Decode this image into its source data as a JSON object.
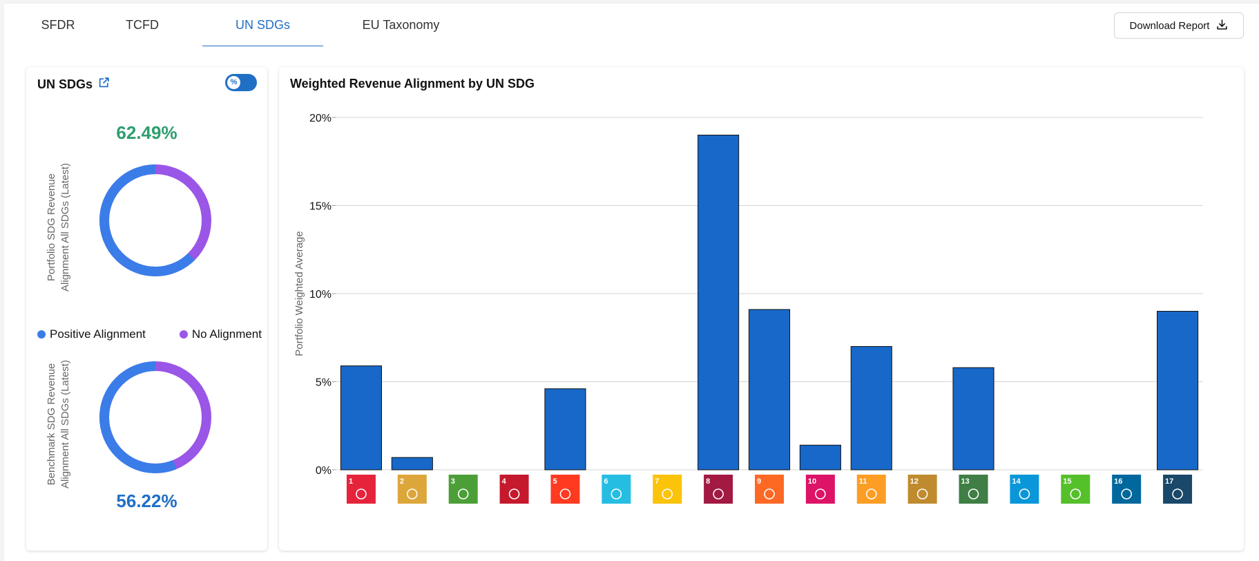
{
  "tabs": [
    {
      "label": "SFDR",
      "active": false
    },
    {
      "label": "TCFD",
      "active": false
    },
    {
      "label": "UN SDGs",
      "active": true
    },
    {
      "label": "EU Taxonomy",
      "active": false
    }
  ],
  "download_button": {
    "label": "Download Report",
    "icon": "download-icon"
  },
  "left_panel": {
    "title": "UN SDGs",
    "title_icon": "external-link-icon",
    "toggle": {
      "label": "%",
      "on": true
    },
    "portfolio": {
      "value": "62.49%",
      "value_color": "#2e9e6e",
      "label": "Portfolio SDG Revenue Alignment All SDGs (Latest)",
      "positive_fraction": 0.6249
    },
    "benchmark": {
      "value": "56.22%",
      "value_color": "#1f6fc5",
      "label": "Benchmark SDG Revenue Alignment All SDGs (Latest)",
      "positive_fraction": 0.5622
    },
    "legend": [
      {
        "label": "Positive Alignment",
        "color": "#3b7de8"
      },
      {
        "label": "No Alignment",
        "color": "#9a56e6"
      }
    ]
  },
  "right_panel": {
    "title": "Weighted Revenue Alignment by UN SDG"
  },
  "chart_data": {
    "type": "bar",
    "title": "Weighted Revenue Alignment by UN SDG",
    "xlabel": "",
    "ylabel": "Portfolio Weighted Average",
    "ylim": [
      0,
      20
    ],
    "yticks": [
      "0%",
      "5%",
      "10%",
      "15%",
      "20%"
    ],
    "grid": true,
    "bar_color": "#1768c8",
    "categories": [
      "SDG 1",
      "SDG 2",
      "SDG 3",
      "SDG 4",
      "SDG 5",
      "SDG 6",
      "SDG 7",
      "SDG 8",
      "SDG 9",
      "SDG 10",
      "SDG 11",
      "SDG 12",
      "SDG 13",
      "SDG 14",
      "SDG 15",
      "SDG 16",
      "SDG 17"
    ],
    "values": [
      5.9,
      0.7,
      0,
      0,
      4.6,
      0,
      0,
      19.0,
      9.1,
      1.4,
      7.0,
      0,
      5.8,
      0,
      0,
      0,
      9.0
    ],
    "sdg_icons": [
      {
        "num": "1",
        "color": "#e5243b"
      },
      {
        "num": "2",
        "color": "#dda63a"
      },
      {
        "num": "3",
        "color": "#4c9f38"
      },
      {
        "num": "4",
        "color": "#c5192d"
      },
      {
        "num": "5",
        "color": "#ff3a21"
      },
      {
        "num": "6",
        "color": "#26bde2"
      },
      {
        "num": "7",
        "color": "#fcc30b"
      },
      {
        "num": "8",
        "color": "#a21942"
      },
      {
        "num": "9",
        "color": "#fd6925"
      },
      {
        "num": "10",
        "color": "#dd1367"
      },
      {
        "num": "11",
        "color": "#fd9d24"
      },
      {
        "num": "12",
        "color": "#bf8b2e"
      },
      {
        "num": "13",
        "color": "#3f7e44"
      },
      {
        "num": "14",
        "color": "#0a97d9"
      },
      {
        "num": "15",
        "color": "#56c02b"
      },
      {
        "num": "16",
        "color": "#00689d"
      },
      {
        "num": "17",
        "color": "#19486a"
      }
    ]
  }
}
